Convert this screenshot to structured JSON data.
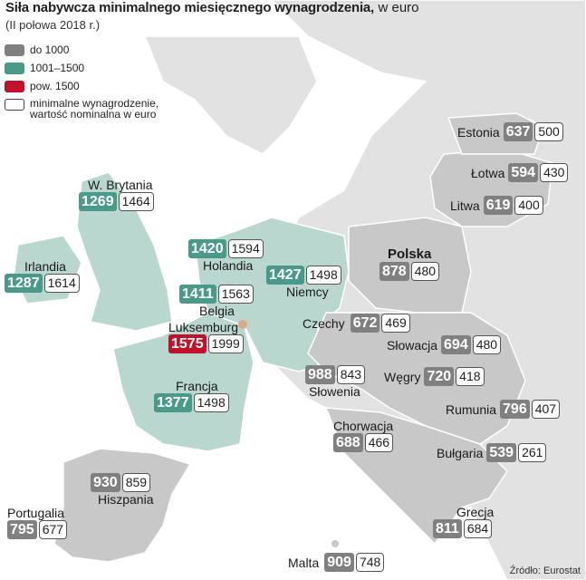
{
  "title": "Siła nabywcza minimalnego miesięcznego wynagrodzenia,",
  "title_unit": "w euro",
  "subtitle": "(II połowa 2018 r.)",
  "colors": {
    "low": "#808080",
    "mid": "#4a9a8a",
    "high": "#c0132b",
    "sea": "#ffffff",
    "land_other": "#e2e2e2",
    "region_low_fill": "#c8c8c8",
    "region_mid_fill": "#b9d7cf"
  },
  "legend": [
    {
      "swatch": "low",
      "label": "do 1000"
    },
    {
      "swatch": "mid",
      "label": "1001–1500"
    },
    {
      "swatch": "high",
      "label": "pow. 1500"
    },
    {
      "swatch": "white",
      "label": "minimalne wynagrodzenie,\nwartość nominalna w euro"
    }
  ],
  "countries": [
    {
      "key": "estonia",
      "name": "Estonia",
      "ppp": "637",
      "nominal": "500",
      "category": "low"
    },
    {
      "key": "lotwa",
      "name": "Łotwa",
      "ppp": "594",
      "nominal": "430",
      "category": "low"
    },
    {
      "key": "litwa",
      "name": "Litwa",
      "ppp": "619",
      "nominal": "400",
      "category": "low"
    },
    {
      "key": "wbrytania",
      "name": "W. Brytania",
      "ppp": "1269",
      "nominal": "1464",
      "category": "mid"
    },
    {
      "key": "irlandia",
      "name": "Irlandia",
      "ppp": "1287",
      "nominal": "1614",
      "category": "mid"
    },
    {
      "key": "holandia",
      "name": "Holandia",
      "ppp": "1420",
      "nominal": "1594",
      "category": "mid"
    },
    {
      "key": "polska",
      "name": "Polska",
      "ppp": "878",
      "nominal": "480",
      "category": "low"
    },
    {
      "key": "niemcy",
      "name": "Niemcy",
      "ppp": "1427",
      "nominal": "1498",
      "category": "mid"
    },
    {
      "key": "belgia",
      "name": "Belgia",
      "ppp": "1411",
      "nominal": "1563",
      "category": "mid"
    },
    {
      "key": "luksemburg",
      "name": "Luksemburg",
      "ppp": "1575",
      "nominal": "1999",
      "category": "high"
    },
    {
      "key": "czechy",
      "name": "Czechy",
      "ppp": "672",
      "nominal": "469",
      "category": "low"
    },
    {
      "key": "slowacja",
      "name": "Słowacja",
      "ppp": "694",
      "nominal": "480",
      "category": "low"
    },
    {
      "key": "wegry",
      "name": "Węgry",
      "ppp": "720",
      "nominal": "418",
      "category": "low"
    },
    {
      "key": "slowenia",
      "name": "Słowenia",
      "ppp": "988",
      "nominal": "843",
      "category": "low"
    },
    {
      "key": "francja",
      "name": "Francja",
      "ppp": "1377",
      "nominal": "1498",
      "category": "mid"
    },
    {
      "key": "rumunia",
      "name": "Rumunia",
      "ppp": "796",
      "nominal": "407",
      "category": "low"
    },
    {
      "key": "chorwacja",
      "name": "Chorwacja",
      "ppp": "688",
      "nominal": "466",
      "category": "low"
    },
    {
      "key": "bulgaria",
      "name": "Bułgaria",
      "ppp": "539",
      "nominal": "261",
      "category": "low"
    },
    {
      "key": "hiszpania",
      "name": "Hiszpania",
      "ppp": "930",
      "nominal": "859",
      "category": "low"
    },
    {
      "key": "portugalia",
      "name": "Portugalia",
      "ppp": "795",
      "nominal": "677",
      "category": "low"
    },
    {
      "key": "grecja",
      "name": "Grecja",
      "ppp": "811",
      "nominal": "684",
      "category": "low"
    },
    {
      "key": "malta",
      "name": "Malta",
      "ppp": "909",
      "nominal": "748",
      "category": "low"
    }
  ],
  "source": "Źródło: Eurostat"
}
